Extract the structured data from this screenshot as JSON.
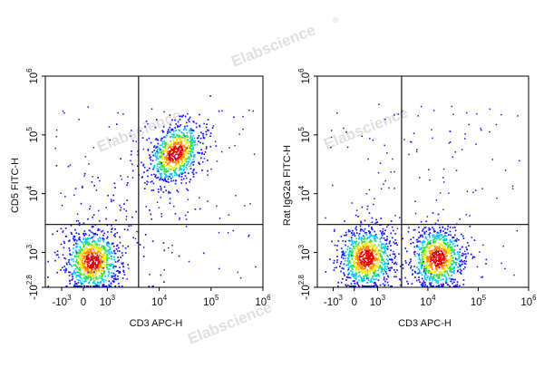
{
  "watermark": "Elabscience",
  "watermark_mark": "®",
  "colors": {
    "density_scale": [
      "#1a1aff",
      "#00c8ff",
      "#2fe04a",
      "#ffe800",
      "#ff8a00",
      "#e80000"
    ],
    "gate_line": "#222222",
    "axis": "#000000"
  },
  "chart_data": [
    {
      "type": "scatter",
      "style": "density-colored dot plot with quadrant gate",
      "xlabel": "CD3 APC-H",
      "ylabel": "CD5 FITC-H",
      "x_scale": "biexponential",
      "y_scale": "biexponential",
      "xlim": [
        -1000,
        1000000
      ],
      "ylim": [
        -631,
        1000000
      ],
      "x_ticks": [
        {
          "value": -1000,
          "base": "-10",
          "exp": "3"
        },
        {
          "value": 0,
          "base": "0",
          "exp": ""
        },
        {
          "value": 1000,
          "base": "10",
          "exp": "3"
        },
        {
          "value": 10000,
          "base": "10",
          "exp": "4"
        },
        {
          "value": 100000,
          "base": "10",
          "exp": "5"
        },
        {
          "value": 1000000,
          "base": "10",
          "exp": "6"
        }
      ],
      "y_ticks": [
        {
          "value": -631,
          "base": "-10",
          "exp": "2.8"
        },
        {
          "value": 1000,
          "base": "10",
          "exp": "3"
        },
        {
          "value": 10000,
          "base": "10",
          "exp": "4"
        },
        {
          "value": 100000,
          "base": "10",
          "exp": "5"
        },
        {
          "value": 1000000,
          "base": "10",
          "exp": "6"
        }
      ],
      "quadrant_gate": {
        "x": 4000,
        "y": 3000
      },
      "populations": [
        {
          "x_center": 350,
          "y_center": 380,
          "relative_density": 1.0
        },
        {
          "x_center": 20000,
          "y_center": 50000,
          "relative_density": 0.9
        },
        {
          "x_center": 2500,
          "y_center": 6000,
          "relative_density": 0.1
        }
      ]
    },
    {
      "type": "scatter",
      "style": "density-colored dot plot with quadrant gate",
      "xlabel": "CD3 APC-H",
      "ylabel": "Rat IgG2a FITC-H",
      "x_scale": "biexponential",
      "y_scale": "biexponential",
      "xlim": [
        -1000,
        1000000
      ],
      "ylim": [
        -631,
        1000000
      ],
      "x_ticks": [
        {
          "value": -1000,
          "base": "-10",
          "exp": "3"
        },
        {
          "value": 0,
          "base": "0",
          "exp": ""
        },
        {
          "value": 1000,
          "base": "10",
          "exp": "3"
        },
        {
          "value": 10000,
          "base": "10",
          "exp": "4"
        },
        {
          "value": 100000,
          "base": "10",
          "exp": "5"
        },
        {
          "value": 1000000,
          "base": "10",
          "exp": "6"
        }
      ],
      "y_ticks": [
        {
          "value": -631,
          "base": "-10",
          "exp": "2.8"
        },
        {
          "value": 1000,
          "base": "10",
          "exp": "3"
        },
        {
          "value": 10000,
          "base": "10",
          "exp": "4"
        },
        {
          "value": 100000,
          "base": "10",
          "exp": "5"
        },
        {
          "value": 1000000,
          "base": "10",
          "exp": "6"
        }
      ],
      "quadrant_gate": {
        "x": 3000,
        "y": 3000
      },
      "populations": [
        {
          "x_center": 500,
          "y_center": 600,
          "relative_density": 1.0
        },
        {
          "x_center": 15000,
          "y_center": 600,
          "relative_density": 1.0
        }
      ]
    }
  ]
}
